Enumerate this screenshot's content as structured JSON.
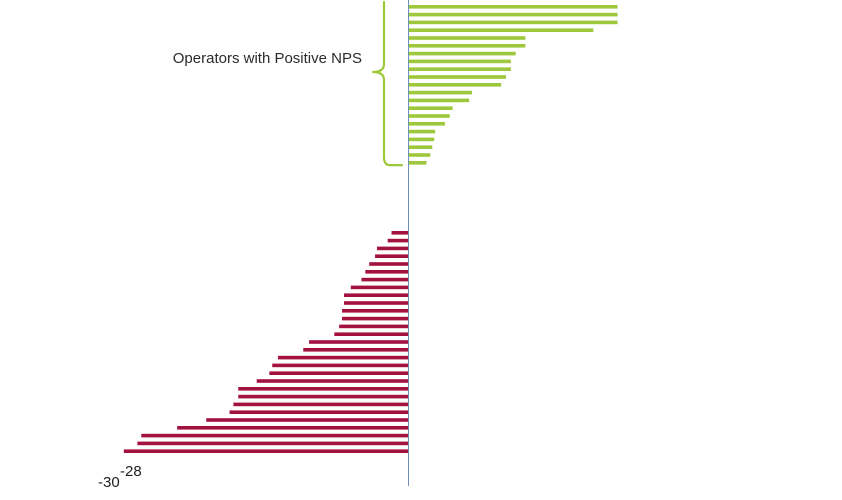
{
  "chart_data": {
    "type": "bar",
    "orientation": "horizontal",
    "title": "",
    "xlabel": "",
    "ylabel": "",
    "annotation": "Operators with Positive NPS",
    "grid": false,
    "legend": "none",
    "xlim": [
      -30.5,
      24
    ],
    "colors": {
      "positive": "#9dc83c",
      "negative": "#a3123f",
      "axis": "#6d8fb0",
      "brace": "#9dc83c"
    },
    "series": [
      {
        "name": "",
        "values": [
          21.5,
          21.5,
          21.5,
          19,
          12,
          12,
          11,
          10.5,
          10.5,
          10,
          9.5,
          6.5,
          6.2,
          4.5,
          4.2,
          3.7,
          2.7,
          2.6,
          2.4,
          2.2,
          1.8,
          -1.8,
          -2.2,
          -3.3,
          -3.5,
          -4.1,
          -4.5,
          -4.9,
          -6,
          -6.7,
          -6.7,
          -6.9,
          -6.9,
          -7.2,
          -7.7,
          -10.3,
          -10.9,
          -13.5,
          -14.1,
          -14.4,
          -15.7,
          -17.6,
          -17.6,
          -18.1,
          -18.5,
          -20.9,
          -23.9,
          -27.6,
          -28,
          -29.4
        ]
      }
    ],
    "tick_labels": [
      "-30",
      "-28"
    ]
  }
}
